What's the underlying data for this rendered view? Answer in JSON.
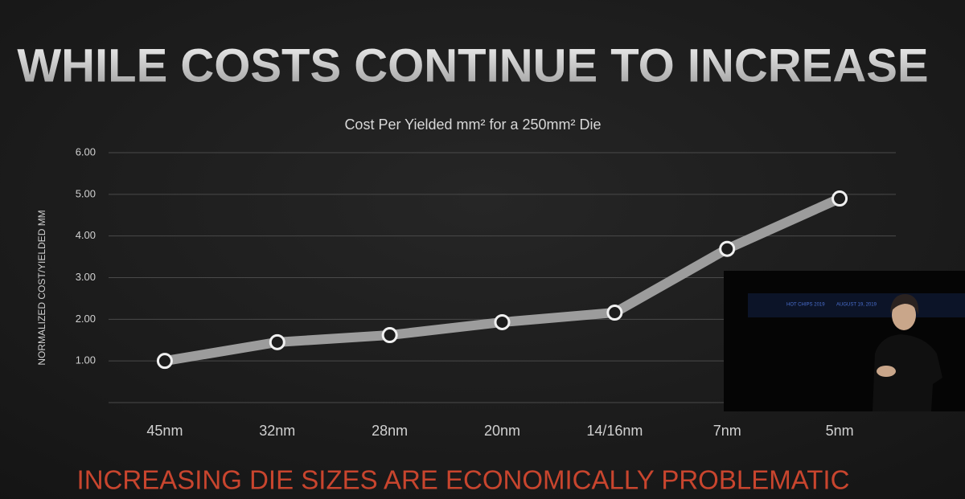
{
  "chart_data": {
    "type": "line",
    "slide_title": "WHILE COSTS CONTINUE TO INCREASE",
    "title": "Cost Per Yielded mm² for a 250mm² Die",
    "y_label": "NORMALIZED COST/YIELDED MM",
    "footer": "INCREASING DIE SIZES ARE ECONOMICALLY PROBLEMATIC",
    "categories": [
      "45nm",
      "32nm",
      "28nm",
      "20nm",
      "14/16nm",
      "7nm",
      "5nm"
    ],
    "values": [
      1.0,
      1.45,
      1.62,
      1.93,
      2.16,
      3.69,
      4.9
    ],
    "color": "#9c9c9c",
    "ylim": [
      0,
      6
    ],
    "yticks": [
      {
        "value": 1,
        "label": "1.00"
      },
      {
        "value": 2,
        "label": "2.00"
      },
      {
        "value": 3,
        "label": "3.00"
      },
      {
        "value": 4,
        "label": "4.00"
      },
      {
        "value": 5,
        "label": "5.00"
      },
      {
        "value": 6,
        "label": "6.00"
      }
    ],
    "grid": true
  },
  "inset": {
    "captions": [
      "HOT CHIPS 2019",
      "AUGUST 19, 2019"
    ]
  }
}
